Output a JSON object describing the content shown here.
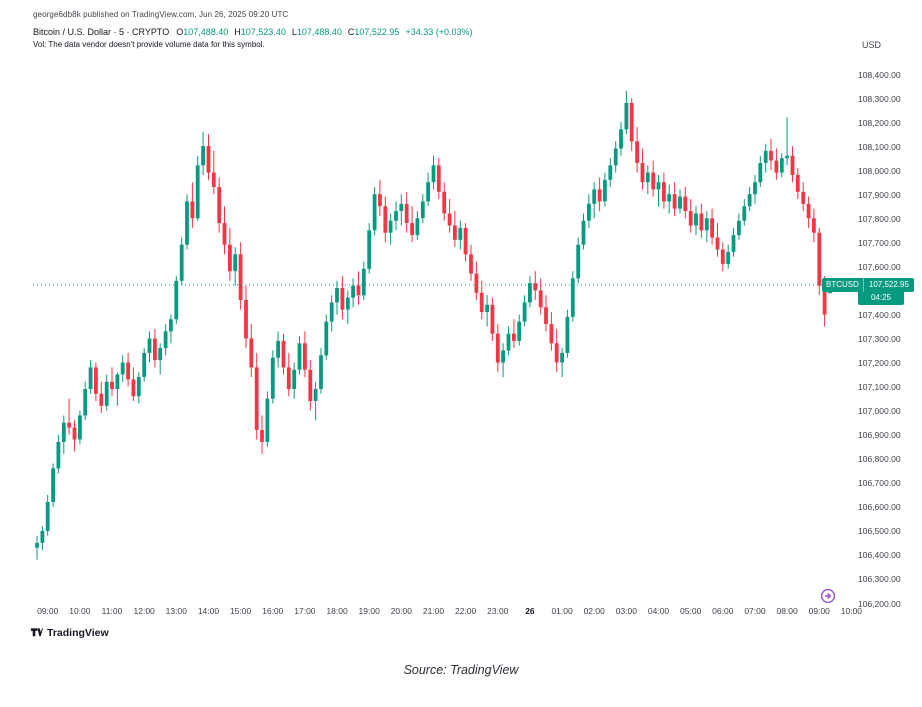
{
  "attribution": "george6db8k published on TradingView.com, Jun 26, 2025 09:20 UTC",
  "legend": {
    "title": "Bitcoin / U.S. Dollar · 5 · CRYPTO",
    "ohlc": [
      {
        "label": "O",
        "value": "107,488.40"
      },
      {
        "label": "H",
        "value": "107,523.40"
      },
      {
        "label": "L",
        "value": "107,488.40"
      },
      {
        "label": "C",
        "value": "107,522.95"
      }
    ],
    "change": "+34.33 (+0.03%)",
    "vol_note": "Vol: The data vendor doesn't provide volume data for this symbol."
  },
  "price_scale": {
    "currency": "USD",
    "ticks": [
      "108,400.00",
      "108,300.00",
      "108,200.00",
      "108,100.00",
      "108,000.00",
      "107,900.00",
      "107,800.00",
      "107,700.00",
      "107,600.00",
      "107,500.00",
      "107,400.00",
      "107,300.00",
      "107,200.00",
      "107,100.00",
      "107,000.00",
      "106,900.00",
      "106,800.00",
      "106,700.00",
      "106,600.00",
      "106,500.00",
      "106,400.00",
      "106,300.00",
      "106,200.00"
    ]
  },
  "time_scale": {
    "ticks": [
      {
        "label": "09:00",
        "index": 2
      },
      {
        "label": "10:00",
        "index": 8
      },
      {
        "label": "11:00",
        "index": 14
      },
      {
        "label": "12:00",
        "index": 20
      },
      {
        "label": "13:00",
        "index": 26
      },
      {
        "label": "14:00",
        "index": 32
      },
      {
        "label": "15:00",
        "index": 38
      },
      {
        "label": "16:00",
        "index": 44
      },
      {
        "label": "17:00",
        "index": 50
      },
      {
        "label": "18:00",
        "index": 56
      },
      {
        "label": "19:00",
        "index": 62
      },
      {
        "label": "20:00",
        "index": 68
      },
      {
        "label": "21:00",
        "index": 74
      },
      {
        "label": "22:00",
        "index": 80
      },
      {
        "label": "23:00",
        "index": 86
      },
      {
        "label": "26",
        "index": 92,
        "emphasis": true
      },
      {
        "label": "01:00",
        "index": 98
      },
      {
        "label": "02:00",
        "index": 104
      },
      {
        "label": "03:00",
        "index": 110
      },
      {
        "label": "04:00",
        "index": 116
      },
      {
        "label": "05:00",
        "index": 122
      },
      {
        "label": "06:00",
        "index": 128
      },
      {
        "label": "07:00",
        "index": 134
      },
      {
        "label": "08:00",
        "index": 140
      },
      {
        "label": "09:00",
        "index": 146
      },
      {
        "label": "10:00",
        "index": 152
      }
    ]
  },
  "price_line": {
    "symbol": "BTCUSD",
    "price": "107,522.95",
    "countdown": "04:25",
    "value": 107522.95
  },
  "footer": {
    "brand": "TradingView",
    "caption": "Source: TradingView"
  },
  "colors": {
    "up": "#089981",
    "down": "#f23645",
    "axis_text": "#40434c",
    "accent": "#9b51c9"
  },
  "chart_data": {
    "type": "candlestick",
    "title": "Bitcoin / U.S. Dollar, 5, CRYPTO",
    "symbol": "BTCUSD",
    "interval_label": "5",
    "ylabel": "USD",
    "ylim": [
      106200,
      108400
    ],
    "y_tick_step": 100,
    "grid": false,
    "values_estimated": true,
    "last_bar": {
      "open": 107488.4,
      "high": 107523.4,
      "low": 107488.4,
      "close": 107522.95,
      "change": 34.33,
      "change_pct": 0.03
    },
    "candles": [
      [
        106430,
        106480,
        106380,
        106450
      ],
      [
        106450,
        106520,
        106420,
        106500
      ],
      [
        106500,
        106650,
        106480,
        106620
      ],
      [
        106620,
        106780,
        106600,
        106760
      ],
      [
        106760,
        106900,
        106740,
        106870
      ],
      [
        106870,
        106980,
        106820,
        106950
      ],
      [
        106950,
        107050,
        106900,
        106930
      ],
      [
        106930,
        106960,
        106830,
        106880
      ],
      [
        106880,
        107000,
        106860,
        106980
      ],
      [
        106980,
        107120,
        106960,
        107090
      ],
      [
        107090,
        107210,
        107070,
        107180
      ],
      [
        107180,
        107200,
        107040,
        107070
      ],
      [
        107070,
        107120,
        106990,
        107020
      ],
      [
        107020,
        107150,
        107000,
        107120
      ],
      [
        107120,
        107180,
        107060,
        107090
      ],
      [
        107090,
        107160,
        107020,
        107150
      ],
      [
        107150,
        107230,
        107120,
        107200
      ],
      [
        107200,
        107240,
        107100,
        107130
      ],
      [
        107130,
        107180,
        107040,
        107060
      ],
      [
        107060,
        107160,
        107030,
        107140
      ],
      [
        107140,
        107260,
        107120,
        107240
      ],
      [
        107240,
        107330,
        107200,
        107300
      ],
      [
        107300,
        107340,
        107180,
        107210
      ],
      [
        107210,
        107280,
        107150,
        107260
      ],
      [
        107260,
        107360,
        107230,
        107330
      ],
      [
        107330,
        107400,
        107280,
        107380
      ],
      [
        107380,
        107560,
        107360,
        107540
      ],
      [
        107540,
        107720,
        107520,
        107690
      ],
      [
        107690,
        107900,
        107670,
        107870
      ],
      [
        107870,
        107950,
        107760,
        107800
      ],
      [
        107800,
        108060,
        107790,
        108020
      ],
      [
        108020,
        108160,
        107980,
        108100
      ],
      [
        108100,
        108150,
        107960,
        107990
      ],
      [
        107990,
        108080,
        107900,
        107930
      ],
      [
        107930,
        107970,
        107740,
        107780
      ],
      [
        107780,
        107850,
        107650,
        107690
      ],
      [
        107690,
        107760,
        107540,
        107580
      ],
      [
        107580,
        107680,
        107520,
        107650
      ],
      [
        107650,
        107700,
        107420,
        107460
      ],
      [
        107460,
        107520,
        107260,
        107300
      ],
      [
        107300,
        107360,
        107140,
        107180
      ],
      [
        107180,
        107240,
        106880,
        106920
      ],
      [
        106920,
        106980,
        106820,
        106870
      ],
      [
        106870,
        107080,
        106850,
        107050
      ],
      [
        107050,
        107250,
        107030,
        107220
      ],
      [
        107220,
        107330,
        107180,
        107290
      ],
      [
        107290,
        107320,
        107150,
        107180
      ],
      [
        107180,
        107240,
        107060,
        107090
      ],
      [
        107090,
        107200,
        107050,
        107170
      ],
      [
        107170,
        107310,
        107150,
        107280
      ],
      [
        107280,
        107330,
        107140,
        107170
      ],
      [
        107170,
        107210,
        107000,
        107040
      ],
      [
        107040,
        107120,
        106960,
        107090
      ],
      [
        107090,
        107260,
        107070,
        107230
      ],
      [
        107230,
        107400,
        107210,
        107370
      ],
      [
        107370,
        107480,
        107330,
        107450
      ],
      [
        107450,
        107540,
        107400,
        107510
      ],
      [
        107510,
        107560,
        107380,
        107420
      ],
      [
        107420,
        107500,
        107360,
        107470
      ],
      [
        107470,
        107550,
        107430,
        107520
      ],
      [
        107520,
        107580,
        107440,
        107480
      ],
      [
        107480,
        107620,
        107460,
        107590
      ],
      [
        107590,
        107780,
        107570,
        107750
      ],
      [
        107750,
        107930,
        107730,
        107900
      ],
      [
        107900,
        107960,
        107810,
        107850
      ],
      [
        107850,
        107890,
        107700,
        107740
      ],
      [
        107740,
        107820,
        107690,
        107790
      ],
      [
        107790,
        107870,
        107750,
        107830
      ],
      [
        107830,
        107900,
        107770,
        107860
      ],
      [
        107860,
        107910,
        107740,
        107780
      ],
      [
        107780,
        107850,
        107700,
        107730
      ],
      [
        107730,
        107830,
        107710,
        107800
      ],
      [
        107800,
        107900,
        107780,
        107870
      ],
      [
        107870,
        107990,
        107850,
        107950
      ],
      [
        107950,
        108060,
        107920,
        108020
      ],
      [
        108020,
        108050,
        107880,
        107910
      ],
      [
        107910,
        107950,
        107790,
        107820
      ],
      [
        107820,
        107880,
        107740,
        107770
      ],
      [
        107770,
        107830,
        107680,
        107710
      ],
      [
        107710,
        107790,
        107670,
        107760
      ],
      [
        107760,
        107780,
        107620,
        107650
      ],
      [
        107650,
        107690,
        107540,
        107570
      ],
      [
        107570,
        107620,
        107460,
        107490
      ],
      [
        107490,
        107540,
        107380,
        107410
      ],
      [
        107410,
        107480,
        107350,
        107440
      ],
      [
        107440,
        107470,
        107290,
        107320
      ],
      [
        107320,
        107360,
        107160,
        107200
      ],
      [
        107200,
        107280,
        107140,
        107250
      ],
      [
        107250,
        107350,
        107230,
        107320
      ],
      [
        107320,
        107380,
        107260,
        107290
      ],
      [
        107290,
        107400,
        107270,
        107370
      ],
      [
        107370,
        107480,
        107350,
        107450
      ],
      [
        107450,
        107560,
        107430,
        107530
      ],
      [
        107530,
        107580,
        107460,
        107500
      ],
      [
        107500,
        107550,
        107400,
        107430
      ],
      [
        107430,
        107480,
        107330,
        107360
      ],
      [
        107360,
        107410,
        107250,
        107280
      ],
      [
        107280,
        107340,
        107160,
        107200
      ],
      [
        107200,
        107260,
        107140,
        107240
      ],
      [
        107240,
        107420,
        107220,
        107390
      ],
      [
        107390,
        107580,
        107370,
        107550
      ],
      [
        107550,
        107720,
        107530,
        107690
      ],
      [
        107690,
        107820,
        107670,
        107790
      ],
      [
        107790,
        107900,
        107760,
        107860
      ],
      [
        107860,
        107950,
        107800,
        107920
      ],
      [
        107920,
        107970,
        107830,
        107870
      ],
      [
        107870,
        107990,
        107850,
        107960
      ],
      [
        107960,
        108050,
        107930,
        108020
      ],
      [
        108020,
        108120,
        107990,
        108090
      ],
      [
        108090,
        108200,
        108060,
        108170
      ],
      [
        108170,
        108330,
        108150,
        108280
      ],
      [
        108280,
        108300,
        108080,
        108120
      ],
      [
        108120,
        108180,
        107990,
        108030
      ],
      [
        108030,
        108090,
        107920,
        107950
      ],
      [
        107950,
        108020,
        107900,
        107990
      ],
      [
        107990,
        108040,
        107890,
        107920
      ],
      [
        107920,
        107980,
        107850,
        107950
      ],
      [
        107950,
        107990,
        107840,
        107870
      ],
      [
        107870,
        107940,
        107820,
        107900
      ],
      [
        107900,
        107950,
        107810,
        107840
      ],
      [
        107840,
        107920,
        107820,
        107890
      ],
      [
        107890,
        107930,
        107800,
        107830
      ],
      [
        107830,
        107880,
        107740,
        107770
      ],
      [
        107770,
        107850,
        107730,
        107820
      ],
      [
        107820,
        107860,
        107720,
        107750
      ],
      [
        107750,
        107830,
        107700,
        107800
      ],
      [
        107800,
        107840,
        107690,
        107720
      ],
      [
        107720,
        107780,
        107640,
        107670
      ],
      [
        107670,
        107700,
        107580,
        107610
      ],
      [
        107610,
        107690,
        107590,
        107660
      ],
      [
        107660,
        107760,
        107640,
        107730
      ],
      [
        107730,
        107820,
        107710,
        107790
      ],
      [
        107790,
        107880,
        107770,
        107850
      ],
      [
        107850,
        107930,
        107830,
        107900
      ],
      [
        107900,
        107980,
        107860,
        107950
      ],
      [
        107950,
        108060,
        107930,
        108030
      ],
      [
        108030,
        108110,
        107990,
        108080
      ],
      [
        108080,
        108130,
        108000,
        108040
      ],
      [
        108040,
        108090,
        107960,
        107990
      ],
      [
        107990,
        108070,
        107970,
        108050
      ],
      [
        108050,
        108220,
        108020,
        108060
      ],
      [
        108060,
        108100,
        107950,
        107980
      ],
      [
        107980,
        108010,
        107880,
        107910
      ],
      [
        107910,
        107950,
        107830,
        107860
      ],
      [
        107860,
        107890,
        107760,
        107800
      ],
      [
        107800,
        107840,
        107700,
        107740
      ],
      [
        107740,
        107760,
        107480,
        107520
      ],
      [
        107520,
        107560,
        107350,
        107400
      ],
      [
        107488.4,
        107523.4,
        107488.4,
        107522.95
      ]
    ]
  }
}
